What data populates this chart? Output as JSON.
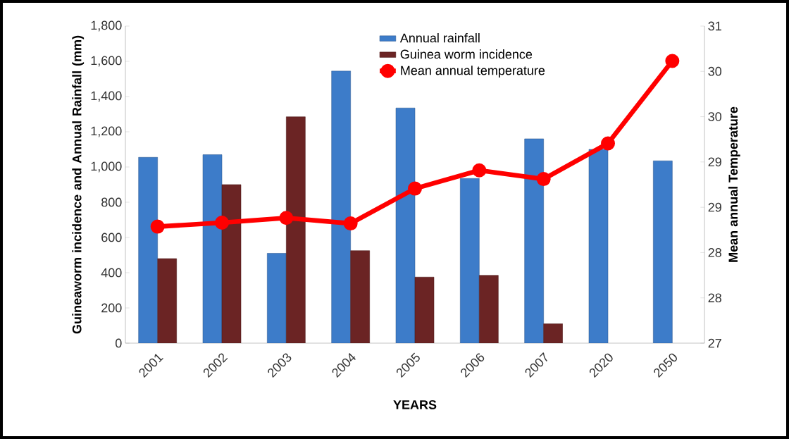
{
  "chart_data": {
    "type": "bar",
    "xlabel": "YEARS",
    "ylabel": "Guineaworm incidence and Annual Rainfall (mm)",
    "y2label": "Mean annual Temperature",
    "categories": [
      "2001",
      "2002",
      "2003",
      "2004",
      "2005",
      "2006",
      "2007",
      "2020",
      "2050"
    ],
    "series": [
      {
        "name": "Annual rainfall",
        "color": "#3d7cc9",
        "values": [
          1055,
          1070,
          510,
          1545,
          1335,
          935,
          1160,
          1100,
          1035
        ]
      },
      {
        "name": "Guinea worm incidence",
        "color": "#6b2424",
        "values": [
          480,
          900,
          1285,
          525,
          375,
          385,
          110,
          null,
          null
        ]
      },
      {
        "name": "Mean annual temperature",
        "type": "line",
        "axis": "y2",
        "color": "#ff0000",
        "marker": "circle",
        "line_style": "solid",
        "values": [
          28.47,
          28.52,
          28.58,
          28.51,
          28.95,
          29.18,
          29.07,
          29.52,
          30.56
        ]
      }
    ],
    "ylim": [
      0,
      1800
    ],
    "yticks": [
      0,
      200,
      400,
      600,
      800,
      {
        "value": 1000,
        "label": "1,000"
      },
      {
        "value": 1200,
        "label": "1,200"
      },
      {
        "value": 1400,
        "label": "1,400"
      },
      {
        "value": 1600,
        "label": "1,600"
      },
      {
        "value": 1800,
        "label": "1,800"
      }
    ],
    "y2lim": [
      27,
      31
    ],
    "y2ticks": [
      27,
      {
        "value": 27.571,
        "label": "28"
      },
      {
        "value": 28.143,
        "label": "28"
      },
      {
        "value": 28.714,
        "label": "29"
      },
      {
        "value": 29.286,
        "label": "29"
      },
      {
        "value": 29.857,
        "label": "30"
      },
      {
        "value": 30.429,
        "label": "30"
      },
      31
    ],
    "grid": false,
    "legend": "top"
  }
}
